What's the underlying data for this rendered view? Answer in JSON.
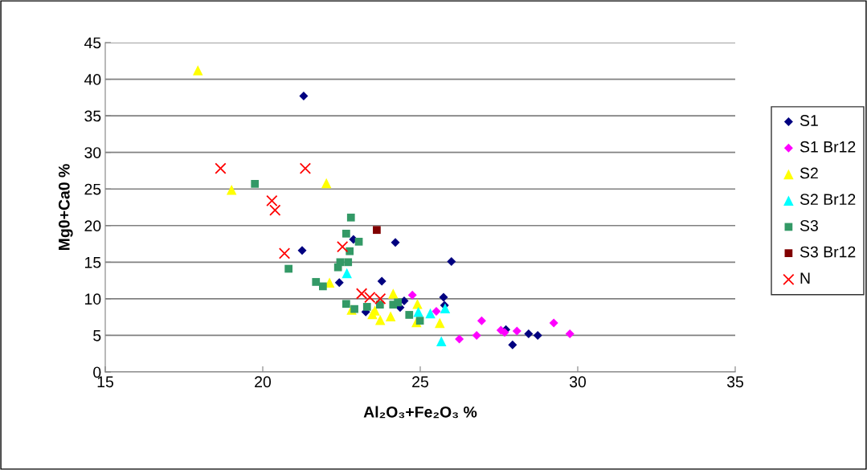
{
  "chart_data": {
    "type": "scatter",
    "xlabel": "Al₂O₃+Fe₂O₃ %",
    "ylabel": "Mg0+Ca0 %",
    "xlim": [
      15,
      35
    ],
    "xticks": [
      15,
      20,
      25,
      30,
      35
    ],
    "ylim": [
      0,
      45
    ],
    "yticks": [
      0,
      5,
      10,
      15,
      20,
      25,
      30,
      35,
      40,
      45
    ],
    "grid": "y",
    "legend": "right",
    "series": [
      {
        "name": "S1",
        "color": "#000080",
        "marker": "diamond",
        "x": [
          21.3,
          21.25,
          22.88,
          24.21,
          25.99,
          22.43,
          23.78,
          25.74,
          25.77,
          24.49,
          24.36,
          23.27,
          27.72,
          27.93,
          28.44,
          28.73
        ],
        "values": [
          37.7,
          16.6,
          18.1,
          17.7,
          15.1,
          12.2,
          12.4,
          10.2,
          9.1,
          9.7,
          8.8,
          8.2,
          5.8,
          3.7,
          5.2,
          5.0
        ]
      },
      {
        "name": "S1 Br12",
        "color": "#ff00ff",
        "marker": "diamond",
        "x": [
          24.75,
          25.51,
          26.24,
          26.79,
          26.95,
          27.56,
          27.68,
          28.07,
          29.24,
          29.75
        ],
        "values": [
          10.5,
          8.3,
          4.5,
          5.0,
          7.0,
          5.7,
          5.4,
          5.6,
          6.7,
          5.2
        ]
      },
      {
        "name": "S2",
        "color": "#ffff00",
        "marker": "triangle",
        "x": [
          17.94,
          19.01,
          22.02,
          22.12,
          22.82,
          24.14,
          23.56,
          23.48,
          23.73,
          24.06,
          24.91,
          24.88,
          25.62
        ],
        "values": [
          41.2,
          24.9,
          25.8,
          12.2,
          8.5,
          10.7,
          8.4,
          7.9,
          7.1,
          7.6,
          9.3,
          6.8,
          6.7
        ]
      },
      {
        "name": "S2 Br12",
        "color": "#00ffff",
        "marker": "triangle",
        "x": [
          22.67,
          24.94,
          25.32,
          25.79,
          25.67
        ],
        "values": [
          13.5,
          8.2,
          8.0,
          8.7,
          4.2
        ]
      },
      {
        "name": "S3",
        "color": "#339966",
        "marker": "square",
        "x": [
          19.75,
          22.8,
          22.65,
          23.05,
          22.76,
          20.82,
          22.46,
          22.71,
          22.39,
          21.69,
          21.91,
          22.65,
          22.91,
          23.31,
          23.72,
          24.14,
          24.29,
          24.65,
          24.99
        ],
        "values": [
          25.7,
          21.1,
          18.9,
          17.8,
          16.5,
          14.1,
          15.0,
          15.0,
          14.3,
          12.3,
          11.7,
          9.3,
          8.6,
          8.9,
          9.2,
          9.2,
          9.5,
          7.8,
          7.0
        ]
      },
      {
        "name": "S3 Br12",
        "color": "#800000",
        "marker": "square",
        "x": [
          23.62
        ],
        "values": [
          19.4
        ]
      },
      {
        "name": "N",
        "color": "#ff0000",
        "marker": "cross",
        "x": [
          18.66,
          21.35,
          20.29,
          20.39,
          20.69,
          22.53,
          23.14,
          23.4,
          23.73
        ],
        "values": [
          27.8,
          27.8,
          23.4,
          22.1,
          16.2,
          17.1,
          10.7,
          10.2,
          10.0
        ]
      }
    ]
  }
}
